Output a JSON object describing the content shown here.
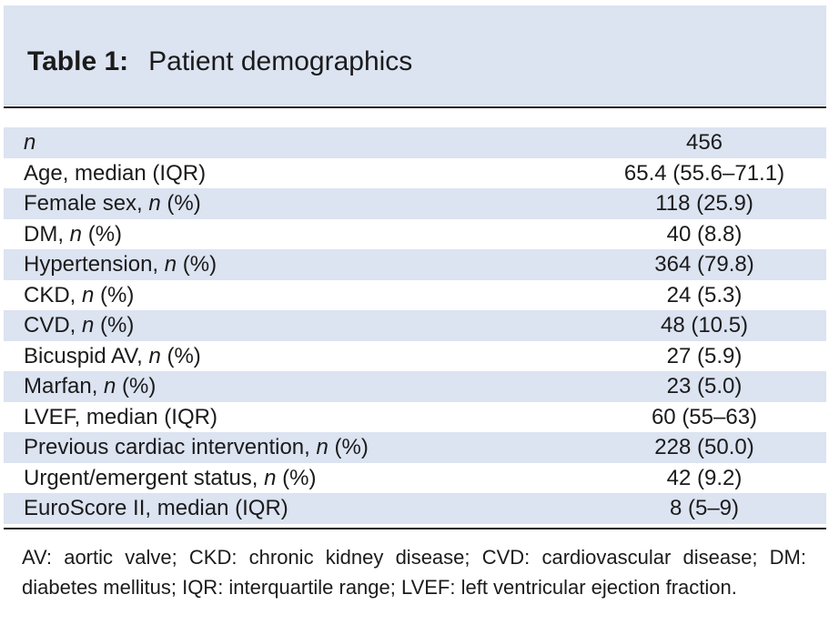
{
  "table": {
    "label": "Table 1:",
    "caption": "Patient demographics",
    "rows": [
      {
        "label": "",
        "label_italic": "n",
        "label_after": "",
        "value": "456"
      },
      {
        "label": "Age, median (IQR)",
        "label_italic": "",
        "label_after": "",
        "value": "65.4 (55.6–71.1)"
      },
      {
        "label": "Female sex, ",
        "label_italic": "n",
        "label_after": " (%)",
        "value": "118 (25.9)"
      },
      {
        "label": "DM, ",
        "label_italic": "n",
        "label_after": " (%)",
        "value": "40 (8.8)"
      },
      {
        "label": "Hypertension, ",
        "label_italic": "n",
        "label_after": " (%)",
        "value": "364 (79.8)"
      },
      {
        "label": "CKD, ",
        "label_italic": "n",
        "label_after": " (%)",
        "value": "24 (5.3)"
      },
      {
        "label": "CVD, ",
        "label_italic": "n",
        "label_after": " (%)",
        "value": "48 (10.5)"
      },
      {
        "label": "Bicuspid AV, ",
        "label_italic": "n",
        "label_after": " (%)",
        "value": "27 (5.9)"
      },
      {
        "label": "Marfan, ",
        "label_italic": "n",
        "label_after": " (%)",
        "value": "23 (5.0)"
      },
      {
        "label": "LVEF, median (IQR)",
        "label_italic": "",
        "label_after": "",
        "value": "60 (55–63)"
      },
      {
        "label": "Previous cardiac intervention, ",
        "label_italic": "n",
        "label_after": " (%)",
        "value": "228 (50.0)"
      },
      {
        "label": "Urgent/emergent status, ",
        "label_italic": "n",
        "label_after": " (%)",
        "value": "42 (9.2)"
      },
      {
        "label": "EuroScore II, median (IQR)",
        "label_italic": "",
        "label_after": "",
        "value": "8 (5–9)"
      }
    ],
    "footnote": "AV: aortic valve; CKD: chronic kidney disease; CVD: cardiovascular disease; DM: diabetes mellitus; IQR: interquartile range; LVEF: left ventricular ejection fraction."
  },
  "colors": {
    "header_bg": "#dce3f1",
    "row_shade": "#dce3f1",
    "text": "#1b1b1b"
  }
}
